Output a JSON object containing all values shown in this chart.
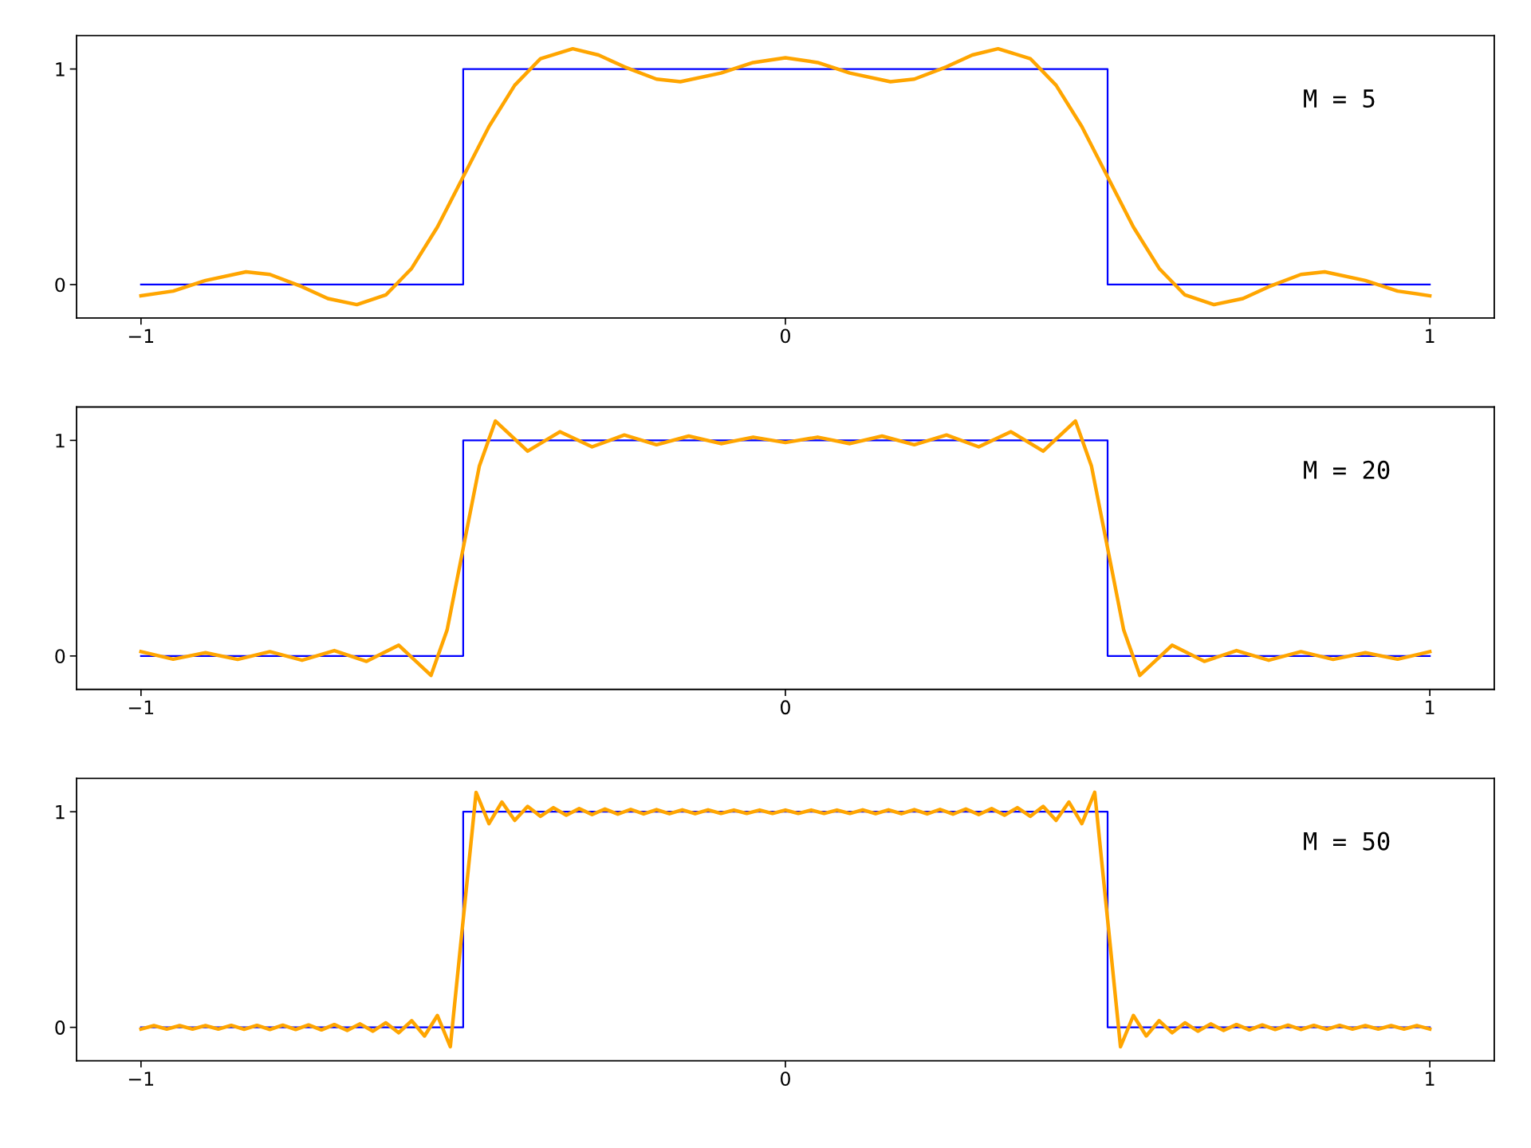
{
  "chart_data": [
    {
      "type": "line",
      "xlim": [
        -1.1,
        1.1
      ],
      "ylim": [
        -0.155,
        1.155
      ],
      "xticks": [
        -1,
        0,
        1
      ],
      "yticks": [
        0,
        1
      ],
      "grid": false,
      "annotations": [
        "M = 5"
      ],
      "series": [
        {
          "color": "#0000ff",
          "x": [
            -1,
            -0.5,
            -0.5,
            0.5,
            0.5,
            1
          ],
          "values": [
            0,
            0,
            1,
            1,
            0,
            0
          ]
        },
        {
          "color": "#ffa500",
          "x": [
            -1,
            -0.95,
            -0.9,
            -0.837,
            -0.8,
            -0.75,
            -0.71,
            -0.665,
            -0.62,
            -0.58,
            -0.54,
            -0.5,
            -0.46,
            -0.42,
            -0.38,
            -0.33,
            -0.29,
            -0.25,
            -0.2,
            -0.163,
            -0.1,
            -0.05,
            0,
            0.05,
            0.1,
            0.163,
            0.2,
            0.25,
            0.29,
            0.33,
            0.38,
            0.42,
            0.46,
            0.5,
            0.54,
            0.58,
            0.62,
            0.665,
            0.71,
            0.75,
            0.8,
            0.837,
            0.9,
            0.95,
            1
          ],
          "values": [
            -0.052,
            -0.03,
            0.019,
            0.059,
            0.047,
            -0.01,
            -0.065,
            -0.093,
            -0.048,
            0.075,
            0.267,
            0.5,
            0.733,
            0.925,
            1.048,
            1.094,
            1.065,
            1.01,
            0.953,
            0.941,
            0.981,
            1.03,
            1.052,
            1.03,
            0.981,
            0.941,
            0.953,
            1.01,
            1.065,
            1.094,
            1.048,
            0.925,
            0.733,
            0.5,
            0.267,
            0.075,
            -0.048,
            -0.093,
            -0.065,
            -0.01,
            0.047,
            0.059,
            0.019,
            -0.03,
            -0.052
          ]
        }
      ]
    },
    {
      "type": "line",
      "xlim": [
        -1.1,
        1.1
      ],
      "ylim": [
        -0.155,
        1.155
      ],
      "xticks": [
        -1,
        0,
        1
      ],
      "yticks": [
        0,
        1
      ],
      "grid": false,
      "annotations": [
        "M = 20"
      ],
      "series": [
        {
          "color": "#0000ff",
          "x": [
            -1,
            -0.5,
            -0.5,
            0.5,
            0.5,
            1
          ],
          "values": [
            0,
            0,
            1,
            1,
            0,
            0
          ]
        },
        {
          "color": "#ffa500",
          "x": [
            -1,
            -0.95,
            -0.9,
            -0.85,
            -0.8,
            -0.75,
            -0.7,
            -0.65,
            -0.6,
            -0.55,
            -0.525,
            -0.5,
            -0.475,
            -0.45,
            -0.4,
            -0.35,
            -0.3,
            -0.25,
            -0.2,
            -0.15,
            -0.1,
            -0.05,
            0,
            0.05,
            0.1,
            0.15,
            0.2,
            0.25,
            0.3,
            0.35,
            0.4,
            0.45,
            0.475,
            0.5,
            0.525,
            0.55,
            0.6,
            0.65,
            0.7,
            0.75,
            0.8,
            0.85,
            0.9,
            0.95,
            1
          ],
          "values": [
            0.02,
            -0.015,
            0.015,
            -0.016,
            0.02,
            -0.02,
            0.025,
            -0.025,
            0.05,
            -0.09,
            0.12,
            0.5,
            0.88,
            1.09,
            0.95,
            1.04,
            0.97,
            1.025,
            0.98,
            1.02,
            0.985,
            1.015,
            0.99,
            1.015,
            0.985,
            1.02,
            0.98,
            1.025,
            0.97,
            1.04,
            0.95,
            1.09,
            0.88,
            0.5,
            0.12,
            -0.09,
            0.05,
            -0.025,
            0.025,
            -0.02,
            0.02,
            -0.016,
            0.015,
            -0.015,
            0.02
          ]
        }
      ]
    },
    {
      "type": "line",
      "xlim": [
        -1.1,
        1.1
      ],
      "ylim": [
        -0.155,
        1.155
      ],
      "xticks": [
        -1,
        0,
        1
      ],
      "yticks": [
        0,
        1
      ],
      "grid": false,
      "annotations": [
        "M = 50"
      ],
      "series": [
        {
          "color": "#0000ff",
          "x": [
            -1,
            -0.5,
            -0.5,
            0.5,
            0.5,
            1
          ],
          "values": [
            0,
            0,
            1,
            1,
            0,
            0
          ]
        },
        {
          "color": "#ffa500",
          "x": [
            -1,
            -0.98,
            -0.96,
            -0.94,
            -0.92,
            -0.9,
            -0.88,
            -0.86,
            -0.84,
            -0.82,
            -0.8,
            -0.78,
            -0.76,
            -0.74,
            -0.72,
            -0.7,
            -0.68,
            -0.66,
            -0.64,
            -0.62,
            -0.6,
            -0.58,
            -0.56,
            -0.54,
            -0.52,
            -0.5,
            -0.48,
            -0.46,
            -0.44,
            -0.42,
            -0.4,
            -0.38,
            -0.36,
            -0.34,
            -0.32,
            -0.3,
            -0.28,
            -0.26,
            -0.24,
            -0.22,
            -0.2,
            -0.18,
            -0.16,
            -0.14,
            -0.12,
            -0.1,
            -0.08,
            -0.06,
            -0.04,
            -0.02,
            0,
            0.02,
            0.04,
            0.06,
            0.08,
            0.1,
            0.12,
            0.14,
            0.16,
            0.18,
            0.2,
            0.22,
            0.24,
            0.26,
            0.28,
            0.3,
            0.32,
            0.34,
            0.36,
            0.38,
            0.4,
            0.42,
            0.44,
            0.46,
            0.48,
            0.5,
            0.52,
            0.54,
            0.56,
            0.58,
            0.6,
            0.62,
            0.64,
            0.66,
            0.68,
            0.7,
            0.72,
            0.74,
            0.76,
            0.78,
            0.8,
            0.82,
            0.84,
            0.86,
            0.88,
            0.9,
            0.92,
            0.94,
            0.96,
            0.98,
            1
          ],
          "values": [
            -0.008,
            0.008,
            -0.008,
            0.008,
            -0.008,
            0.008,
            -0.008,
            0.009,
            -0.009,
            0.009,
            -0.01,
            0.01,
            -0.01,
            0.011,
            -0.012,
            0.013,
            -0.014,
            0.016,
            -0.018,
            0.021,
            -0.025,
            0.031,
            -0.04,
            0.055,
            -0.09,
            0.5,
            1.09,
            0.945,
            1.045,
            0.96,
            1.025,
            0.979,
            1.019,
            0.984,
            1.015,
            0.987,
            1.013,
            0.989,
            1.011,
            0.99,
            1.01,
            0.991,
            1.009,
            0.991,
            1.009,
            0.992,
            1.008,
            0.992,
            1.008,
            0.992,
            1.008,
            0.992,
            1.008,
            0.992,
            1.008,
            0.992,
            1.009,
            0.991,
            1.009,
            0.991,
            1.01,
            0.99,
            1.011,
            0.989,
            1.013,
            0.987,
            1.015,
            0.984,
            1.019,
            0.979,
            1.025,
            0.96,
            1.045,
            0.945,
            1.09,
            0.5,
            -0.09,
            0.055,
            -0.04,
            0.031,
            -0.025,
            0.021,
            -0.018,
            0.016,
            -0.014,
            0.013,
            -0.012,
            0.011,
            -0.01,
            0.01,
            -0.01,
            0.009,
            -0.009,
            0.009,
            -0.008,
            0.008,
            -0.008,
            0.008,
            -0.008,
            0.008,
            -0.008
          ]
        }
      ]
    }
  ]
}
